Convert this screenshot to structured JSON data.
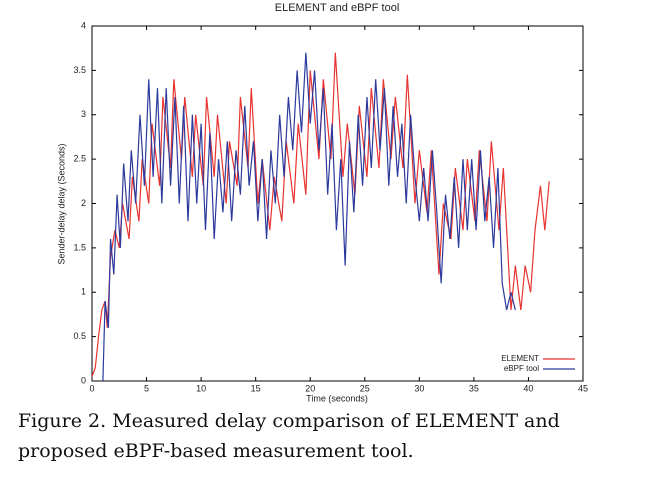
{
  "chart_data": {
    "type": "line",
    "title": "ELEMENT and eBPF tool",
    "x_label": "Time (seconds)",
    "y_label": "Sender-delay delay (Seconds)",
    "xlim": [
      0,
      45
    ],
    "xticks": [
      0,
      5,
      10,
      15,
      20,
      25,
      30,
      35,
      40,
      45
    ],
    "ylim": [
      0,
      4
    ],
    "yticks": [
      0,
      0.5,
      1,
      1.5,
      2,
      2.5,
      3,
      3.5,
      4
    ],
    "grid": false,
    "legend": "lower right",
    "series": [
      {
        "name": "ELEMENT",
        "color": "#e8332f",
        "x": [
          0,
          0.3,
          0.6,
          0.9,
          1.2,
          1.4,
          1.7,
          2.1,
          2.5,
          2.8,
          3.4,
          3.7,
          4.3,
          4.6,
          5.2,
          5.5,
          6.2,
          6.5,
          7.2,
          7.5,
          8.2,
          8.5,
          9.2,
          9.5,
          10.2,
          10.5,
          11.2,
          11.5,
          12.3,
          12.6,
          13.3,
          13.6,
          14.3,
          14.6,
          15.2,
          15.6,
          16.3,
          16.7,
          17.4,
          17.8,
          18.5,
          18.9,
          19.6,
          20.0,
          20.8,
          21.2,
          21.9,
          22.3,
          23.0,
          23.4,
          24.1,
          24.5,
          25.2,
          25.6,
          26.3,
          26.7,
          27.4,
          27.8,
          28.5,
          28.9,
          29.6,
          30.0,
          30.7,
          31.1,
          31.8,
          32.2,
          32.9,
          33.3,
          34.0,
          34.4,
          35.1,
          35.5,
          36.2,
          36.6,
          37.3,
          37.7,
          38.4,
          38.8,
          39.3,
          39.7,
          40.2,
          40.6,
          41.1,
          41.5,
          41.9
        ],
        "values": [
          0.05,
          0.15,
          0.5,
          0.8,
          0.9,
          0.6,
          1.4,
          1.7,
          1.5,
          2.0,
          1.6,
          2.3,
          1.8,
          2.5,
          2.0,
          2.9,
          2.2,
          3.2,
          2.4,
          3.4,
          2.5,
          3.2,
          2.3,
          3.0,
          2.2,
          3.2,
          2.3,
          3.0,
          2.0,
          2.7,
          2.2,
          3.2,
          2.4,
          3.3,
          2.0,
          2.5,
          1.7,
          2.3,
          1.8,
          2.7,
          2.0,
          2.9,
          2.1,
          3.5,
          2.5,
          3.4,
          2.5,
          3.7,
          2.3,
          2.9,
          2.1,
          3.1,
          2.3,
          3.3,
          2.4,
          3.4,
          2.5,
          3.2,
          2.4,
          3.45,
          2.0,
          2.6,
          1.9,
          2.6,
          1.2,
          2.0,
          1.6,
          2.4,
          1.7,
          2.5,
          1.8,
          2.6,
          1.8,
          2.7,
          1.7,
          2.4,
          0.8,
          1.3,
          0.8,
          1.3,
          1.0,
          1.7,
          2.2,
          1.7,
          2.25
        ]
      },
      {
        "name": "eBPF tool",
        "color": "#2b3a9c",
        "x": [
          1.0,
          1.2,
          1.5,
          1.7,
          2.0,
          2.3,
          2.6,
          2.9,
          3.3,
          3.6,
          4.0,
          4.4,
          4.8,
          5.2,
          5.6,
          6.0,
          6.4,
          6.8,
          7.2,
          7.6,
          8.0,
          8.4,
          8.8,
          9.2,
          9.6,
          10.0,
          10.4,
          10.8,
          11.2,
          11.6,
          12.0,
          12.4,
          12.8,
          13.2,
          13.6,
          14.0,
          14.4,
          14.8,
          15.2,
          15.6,
          16.0,
          16.4,
          16.8,
          17.2,
          17.6,
          18.0,
          18.4,
          18.8,
          19.2,
          19.6,
          20.0,
          20.4,
          20.8,
          21.2,
          21.6,
          22.0,
          22.4,
          22.8,
          23.2,
          23.6,
          24.0,
          24.4,
          24.8,
          25.2,
          25.6,
          26.0,
          26.4,
          26.8,
          27.2,
          27.6,
          28.0,
          28.4,
          28.8,
          29.2,
          29.6,
          30.0,
          30.4,
          30.8,
          31.2,
          31.6,
          32.0,
          32.4,
          32.8,
          33.2,
          33.6,
          34.0,
          34.4,
          34.8,
          35.2,
          35.6,
          36.0,
          36.4,
          36.8,
          37.2,
          37.6,
          38.0,
          38.4,
          38.8
        ],
        "values": [
          0.0,
          0.9,
          0.6,
          1.6,
          1.2,
          2.1,
          1.5,
          2.45,
          1.8,
          2.6,
          2.0,
          3.0,
          2.2,
          3.4,
          2.3,
          3.3,
          2.0,
          3.3,
          2.2,
          3.2,
          2.0,
          3.1,
          1.8,
          3.0,
          2.0,
          2.9,
          1.7,
          2.8,
          1.6,
          2.5,
          1.9,
          2.7,
          1.8,
          2.6,
          2.1,
          3.1,
          2.2,
          2.7,
          1.8,
          2.5,
          1.6,
          2.6,
          2.0,
          3.0,
          2.3,
          3.2,
          2.6,
          3.5,
          2.8,
          3.7,
          2.9,
          3.5,
          2.6,
          3.3,
          2.1,
          2.9,
          1.7,
          2.5,
          1.3,
          2.7,
          1.9,
          3.0,
          2.2,
          3.2,
          2.4,
          3.4,
          2.6,
          3.3,
          2.2,
          3.1,
          2.3,
          2.9,
          2.0,
          3.0,
          2.3,
          1.8,
          2.4,
          1.8,
          2.6,
          1.9,
          1.1,
          2.1,
          1.6,
          2.3,
          1.5,
          2.5,
          1.7,
          2.5,
          1.7,
          2.6,
          1.8,
          2.3,
          1.5,
          2.4,
          1.1,
          0.8,
          1.0,
          0.8
        ]
      }
    ]
  },
  "caption": [
    "Figure 2. Measured delay comparison of ELEMENT and",
    "proposed eBPF-based measurement tool."
  ]
}
